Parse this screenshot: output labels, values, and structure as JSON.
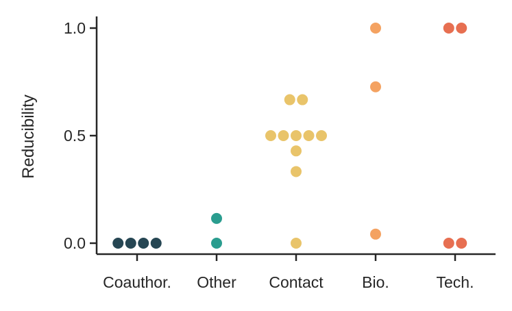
{
  "chart_data": {
    "type": "scatter",
    "subtype": "swarm",
    "title": "",
    "xlabel": "",
    "ylabel": "Reducibility",
    "ylim": [
      -0.05,
      1.05
    ],
    "yticks": [
      {
        "value": 0.0,
        "label": "0.0"
      },
      {
        "value": 0.5,
        "label": "0.5"
      },
      {
        "value": 1.0,
        "label": "1.0"
      }
    ],
    "grid": false,
    "legend": "none",
    "categories": [
      {
        "label": "Coauthor.",
        "color": "#264653",
        "values": [
          0.0,
          0.0,
          0.0,
          0.0
        ]
      },
      {
        "label": "Other",
        "color": "#2a9d8f",
        "values": [
          0.115,
          0.0
        ]
      },
      {
        "label": "Contact",
        "color": "#e9c46a",
        "values": [
          0.667,
          0.667,
          0.5,
          0.5,
          0.5,
          0.5,
          0.5,
          0.429,
          0.333,
          0.0
        ]
      },
      {
        "label": "Bio.",
        "color": "#f4a261",
        "values": [
          1.0,
          0.727,
          0.042
        ]
      },
      {
        "label": "Tech.",
        "color": "#e76f51",
        "values": [
          1.0,
          1.0,
          0.0,
          0.0
        ]
      }
    ]
  }
}
